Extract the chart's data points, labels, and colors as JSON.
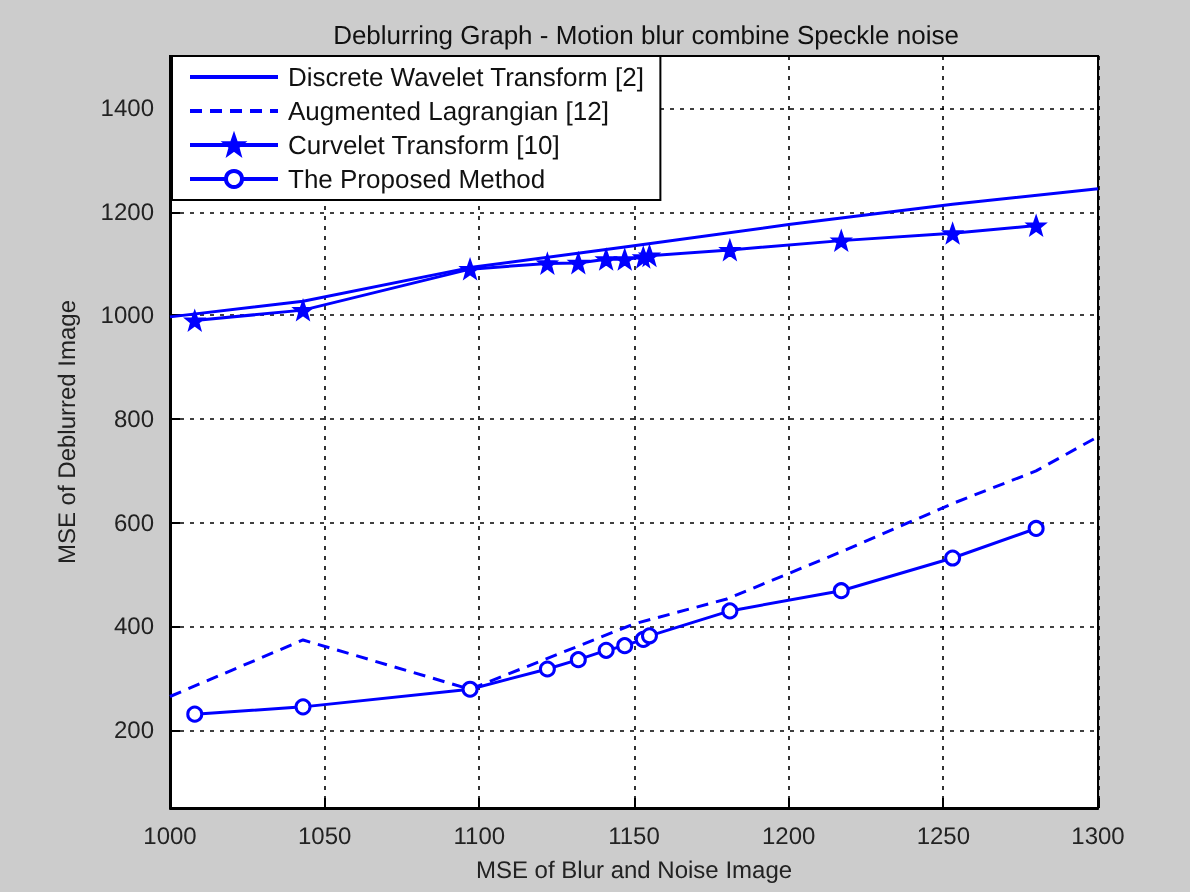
{
  "chart_data": {
    "type": "line",
    "title": "Deblurring Graph - Motion blur combine Speckle noise",
    "xlabel": "MSE of Blur and Noise Image",
    "ylabel": "MSE of Deblurred Image",
    "xlim": [
      1000,
      1300
    ],
    "xticks": [
      1000,
      1050,
      1100,
      1150,
      1200,
      1250,
      1300
    ],
    "ylim": [
      50,
      1500
    ],
    "yticks": [
      200,
      400,
      600,
      800,
      1000,
      1200,
      1400
    ],
    "grid": true,
    "legend": "top left",
    "series": [
      {
        "name": "Discrete Wavelet Transform [2]",
        "color": "#0000ff",
        "marker": "none",
        "line_style": "solid",
        "x": [
          1000,
          1043,
          1097,
          1150,
          1200,
          1253,
          1300
        ],
        "values": [
          997,
          1027,
          1092,
          1134,
          1175,
          1214,
          1244
        ]
      },
      {
        "name": "Augmented Lagrangian [12]",
        "color": "#0000ff",
        "marker": "none",
        "line_style": "dashed",
        "x": [
          1000,
          1043,
          1097,
          1150,
          1180,
          1217,
          1253,
          1280,
          1300
        ],
        "values": [
          265,
          374,
          279,
          405,
          453,
          544,
          637,
          700,
          766
        ]
      },
      {
        "name": "Curvelet Transform [10]",
        "color": "#0000ff",
        "marker": "star",
        "line_style": "solid",
        "x": [
          1008,
          1043,
          1097,
          1122,
          1132,
          1141,
          1147,
          1153,
          1155,
          1181,
          1217,
          1253,
          1280
        ],
        "values": [
          990,
          1010,
          1089,
          1100,
          1101,
          1108,
          1108,
          1112,
          1115,
          1126,
          1144,
          1158,
          1173
        ]
      },
      {
        "name": "The Proposed Method",
        "color": "#0000ff",
        "marker": "circle",
        "line_style": "solid",
        "x": [
          1008,
          1043,
          1097,
          1122,
          1132,
          1141,
          1147,
          1153,
          1155,
          1181,
          1217,
          1253,
          1280
        ],
        "values": [
          231,
          245,
          279,
          318,
          336,
          354,
          363,
          375,
          382,
          430,
          469,
          532,
          589
        ]
      }
    ]
  }
}
